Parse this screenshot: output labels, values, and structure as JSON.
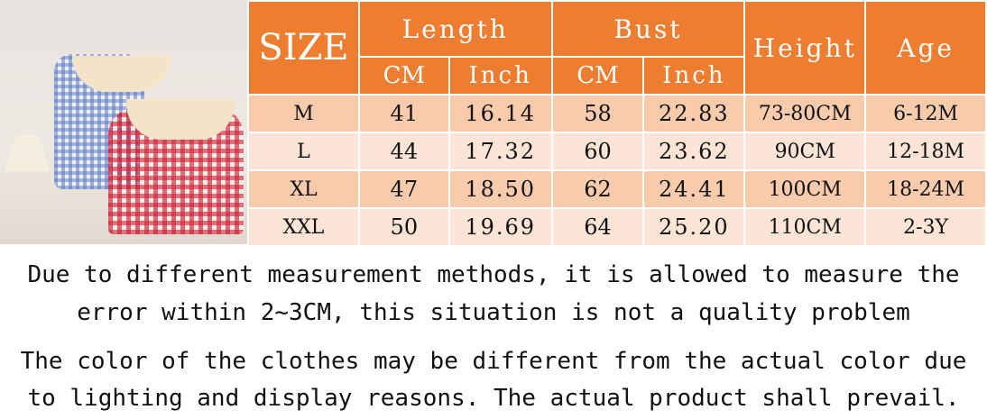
{
  "colors": {
    "header": "#ed7d31",
    "row_dark": "#f8cbad",
    "row_light": "#fce4d6"
  },
  "photo": {
    "subject": "product-photo-gingham-dresses"
  },
  "table": {
    "size_label": "SIZE",
    "length_label": "Length",
    "bust_label": "Bust",
    "height_label": "Height",
    "age_label": "Age",
    "cm_label": "CM",
    "inch_label": "Inch",
    "rows": [
      {
        "size": "M",
        "length_cm": "41",
        "length_in": "16.14",
        "bust_cm": "58",
        "bust_in": "22.83",
        "height": "73-80CM",
        "age": "6-12M"
      },
      {
        "size": "L",
        "length_cm": "44",
        "length_in": "17.32",
        "bust_cm": "60",
        "bust_in": "23.62",
        "height": "90CM",
        "age": "12-18M"
      },
      {
        "size": "XL",
        "length_cm": "47",
        "length_in": "18.50",
        "bust_cm": "62",
        "bust_in": "24.41",
        "height": "100CM",
        "age": "18-24M"
      },
      {
        "size": "XXL",
        "length_cm": "50",
        "length_in": "19.69",
        "bust_cm": "64",
        "bust_in": "25.20",
        "height": "110CM",
        "age": "2-3Y"
      }
    ]
  },
  "notes": {
    "line1": "Due to different measurement methods, it is allowed to measure the",
    "line2": "error within 2~3CM, this situation is not a quality problem",
    "line3": "The color of the clothes may be different from the actual color due",
    "line4": "to lighting and display reasons. The actual product shall prevail."
  }
}
